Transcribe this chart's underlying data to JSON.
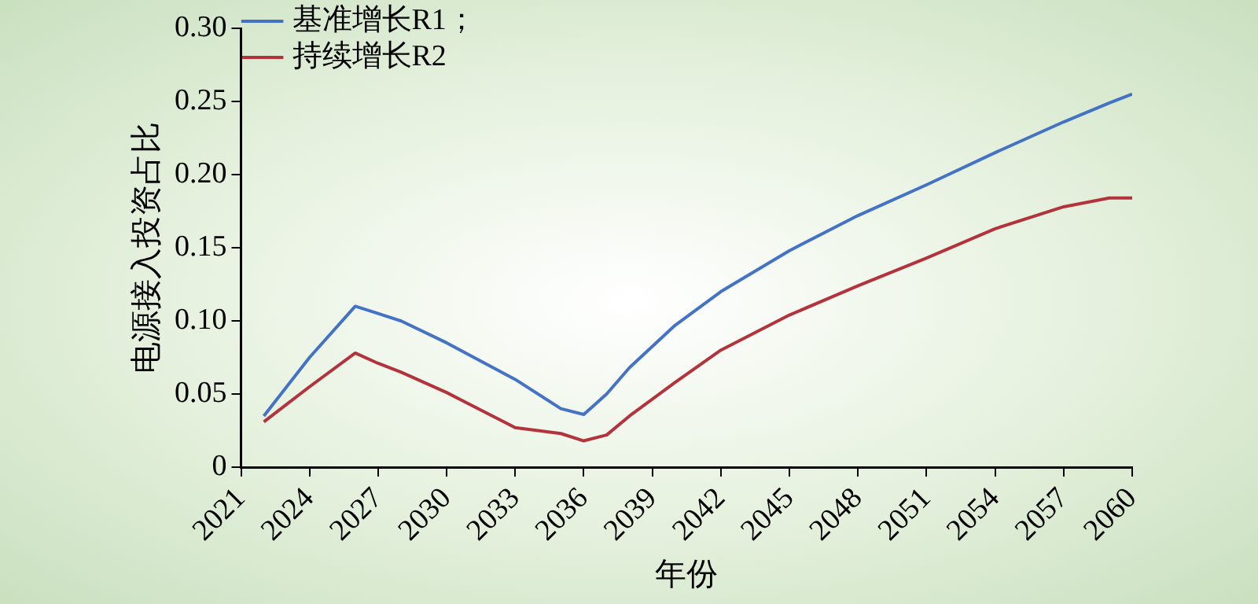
{
  "chart_data": {
    "type": "line",
    "xlabel": "年份",
    "ylabel": "电源接入投资占比",
    "x": [
      2022,
      2024,
      2026,
      2027,
      2028,
      2030,
      2033,
      2035,
      2036,
      2037,
      2038,
      2040,
      2042,
      2045,
      2048,
      2051,
      2054,
      2057,
      2059,
      2060
    ],
    "series": [
      {
        "name": "基准增长R1；",
        "color": "#4472c4",
        "values": [
          0.035,
          0.075,
          0.11,
          0.105,
          0.1,
          0.085,
          0.06,
          0.04,
          0.036,
          0.05,
          0.068,
          0.097,
          0.12,
          0.148,
          0.172,
          0.193,
          0.215,
          0.236,
          0.249,
          0.255
        ]
      },
      {
        "name": "持续增长R2",
        "color": "#b3333c",
        "values": [
          0.031,
          0.055,
          0.078,
          0.071,
          0.065,
          0.051,
          0.027,
          0.023,
          0.018,
          0.022,
          0.035,
          0.058,
          0.08,
          0.104,
          0.124,
          0.143,
          0.163,
          0.178,
          0.184,
          0.184
        ]
      }
    ],
    "xlim": [
      2021,
      2060
    ],
    "xticks": [
      2021,
      2024,
      2027,
      2030,
      2033,
      2036,
      2039,
      2042,
      2045,
      2048,
      2051,
      2054,
      2057,
      2060
    ],
    "ylim": [
      0,
      0.3
    ],
    "yticks": [
      {
        "value": 0,
        "label": "0"
      },
      {
        "value": 0.05,
        "label": "0.05"
      },
      {
        "value": 0.1,
        "label": "0.10"
      },
      {
        "value": 0.15,
        "label": "0.15"
      },
      {
        "value": 0.2,
        "label": "0.20"
      },
      {
        "value": 0.25,
        "label": "0.25"
      },
      {
        "value": 0.3,
        "label": "0.30"
      }
    ],
    "grid": false,
    "legend": "top left",
    "marker": "none",
    "line_style": "solid"
  }
}
